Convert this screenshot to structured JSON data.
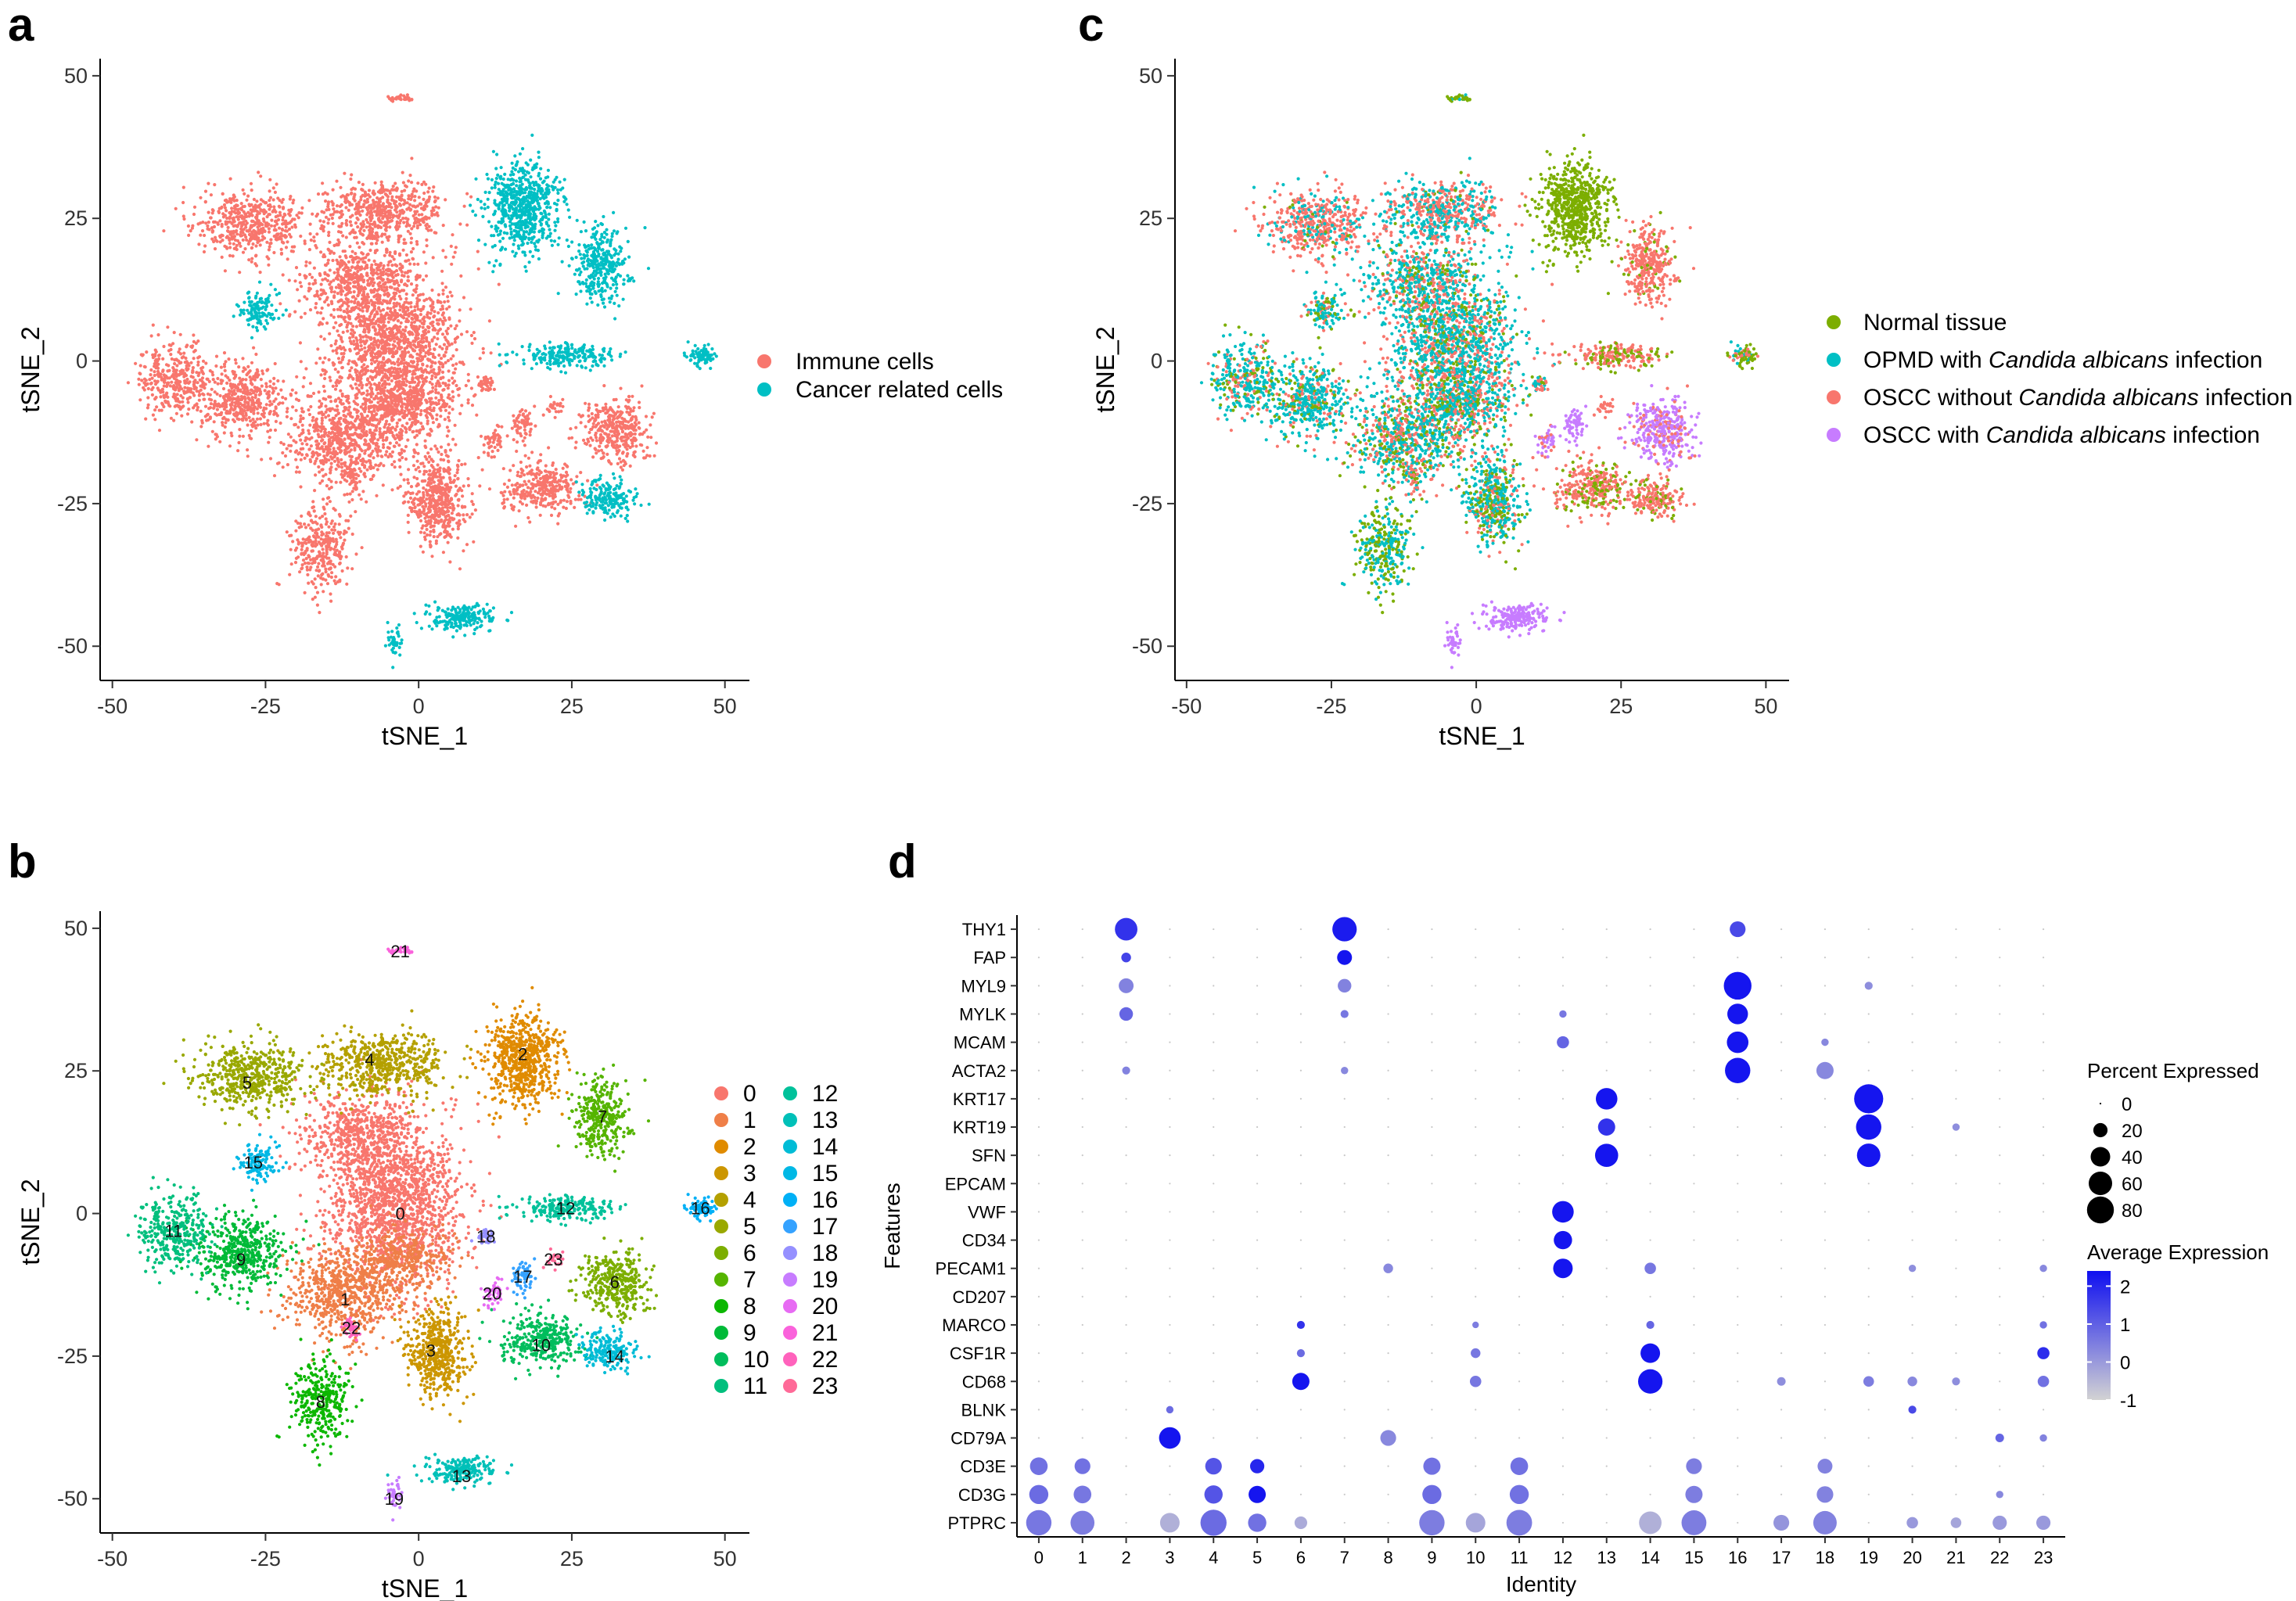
{
  "chart_data": [
    {
      "panel": "a",
      "type": "scatter",
      "xlabel": "tSNE_1",
      "ylabel": "tSNE_2",
      "xlim": [
        -52,
        54
      ],
      "ylim": [
        -56,
        53
      ],
      "xticks": [
        -50,
        -25,
        0,
        25,
        50
      ],
      "yticks": [
        -50,
        -25,
        0,
        25,
        50
      ],
      "grid": false,
      "legend": [
        "Immune cells",
        "Cancer related cells"
      ],
      "colors": [
        "#F8766D",
        "#00BFC4"
      ],
      "legend_position": "right"
    },
    {
      "panel": "b",
      "type": "scatter",
      "xlabel": "tSNE_1",
      "ylabel": "tSNE_2",
      "xlim": [
        -52,
        54
      ],
      "ylim": [
        -56,
        53
      ],
      "xticks": [
        -50,
        -25,
        0,
        25,
        50
      ],
      "yticks": [
        -50,
        -25,
        0,
        25,
        50
      ],
      "grid": false,
      "legend_position": "right",
      "clusters": [
        {
          "label": "0",
          "color": "#F8766D",
          "x": -3,
          "y": 0
        },
        {
          "label": "1",
          "color": "#EF7F48",
          "x": -12,
          "y": -15
        },
        {
          "label": "2",
          "color": "#E08B00",
          "x": 17,
          "y": 28
        },
        {
          "label": "3",
          "color": "#CC9600",
          "x": 2,
          "y": -24
        },
        {
          "label": "4",
          "color": "#B4A000",
          "x": -8,
          "y": 27
        },
        {
          "label": "5",
          "color": "#99A800",
          "x": -28,
          "y": 23
        },
        {
          "label": "6",
          "color": "#7CAE00",
          "x": 32,
          "y": -12
        },
        {
          "label": "7",
          "color": "#55B400",
          "x": 30,
          "y": 17
        },
        {
          "label": "8",
          "color": "#0CB702",
          "x": -16,
          "y": -33
        },
        {
          "label": "9",
          "color": "#00BA38",
          "x": -29,
          "y": -8
        },
        {
          "label": "10",
          "color": "#00BD5C",
          "x": 20,
          "y": -23
        },
        {
          "label": "11",
          "color": "#00BF7D",
          "x": -40,
          "y": -3
        },
        {
          "label": "12",
          "color": "#00C19A",
          "x": 24,
          "y": 1
        },
        {
          "label": "13",
          "color": "#00C0B8",
          "x": 7,
          "y": -46
        },
        {
          "label": "14",
          "color": "#00BCD6",
          "x": 32,
          "y": -25
        },
        {
          "label": "15",
          "color": "#00B8E5",
          "x": -27,
          "y": 9
        },
        {
          "label": "16",
          "color": "#00B0F6",
          "x": 46,
          "y": 1
        },
        {
          "label": "17",
          "color": "#35A2FF",
          "x": 17,
          "y": -11
        },
        {
          "label": "18",
          "color": "#9590FF",
          "x": 11,
          "y": -4
        },
        {
          "label": "19",
          "color": "#C77CFF",
          "x": -4,
          "y": -50
        },
        {
          "label": "20",
          "color": "#E76BF3",
          "x": 12,
          "y": -14
        },
        {
          "label": "21",
          "color": "#FA62DB",
          "x": -3,
          "y": 46
        },
        {
          "label": "22",
          "color": "#FF62BC",
          "x": -11,
          "y": -20
        },
        {
          "label": "23",
          "color": "#FF6A98",
          "x": 22,
          "y": -8
        }
      ]
    },
    {
      "panel": "c",
      "type": "scatter",
      "xlabel": "tSNE_1",
      "ylabel": "tSNE_2",
      "xlim": [
        -52,
        54
      ],
      "ylim": [
        -56,
        53
      ],
      "xticks": [
        -50,
        -25,
        0,
        25,
        50
      ],
      "yticks": [
        -50,
        -25,
        0,
        25,
        50
      ],
      "grid": false,
      "legend_position": "right",
      "legend": [
        {
          "pre": "Normal tissue",
          "it": "",
          "post": "",
          "color": "#7CAE00"
        },
        {
          "pre": "OPMD with ",
          "it": "Candida albicans",
          "post": " infection",
          "color": "#00BFC4"
        },
        {
          "pre": "OSCC without ",
          "it": "Candida albicans",
          "post": " infection",
          "color": "#F8766D"
        },
        {
          "pre": "OSCC with ",
          "it": "Candida albicans",
          "post": " infection",
          "color": "#C77CFF"
        }
      ]
    },
    {
      "panel": "d",
      "type": "scatter",
      "subtype": "dotplot",
      "xlabel": "Identity",
      "ylabel": "Features",
      "identities": [
        "0",
        "1",
        "2",
        "3",
        "4",
        "5",
        "6",
        "7",
        "8",
        "9",
        "10",
        "11",
        "12",
        "13",
        "14",
        "15",
        "16",
        "17",
        "18",
        "19",
        "20",
        "21",
        "22",
        "23"
      ],
      "features": [
        "THY1",
        "FAP",
        "MYL9",
        "MYLK",
        "MCAM",
        "ACTA2",
        "KRT17",
        "KRT19",
        "SFN",
        "EPCAM",
        "VWF",
        "CD34",
        "PECAM1",
        "CD207",
        "MARCO",
        "CSF1R",
        "CD68",
        "BLNK",
        "CD79A",
        "CD3E",
        "CD3G",
        "PTPRC"
      ],
      "size_legend_title": "Percent Expressed",
      "size_legend": [
        0,
        20,
        40,
        60,
        80
      ],
      "color_legend_title": "Average Expression",
      "color_legend_ticks": [
        2,
        1,
        0,
        -1
      ],
      "color_range": [
        -1,
        2.4
      ],
      "dots": [
        {
          "f": "THY1",
          "i": 2,
          "pct": 55,
          "avg": 1.8
        },
        {
          "f": "THY1",
          "i": 7,
          "pct": 65,
          "avg": 2.2
        },
        {
          "f": "THY1",
          "i": 16,
          "pct": 25,
          "avg": 1.4
        },
        {
          "f": "FAP",
          "i": 2,
          "pct": 8,
          "avg": 1.5
        },
        {
          "f": "FAP",
          "i": 7,
          "pct": 22,
          "avg": 2.3
        },
        {
          "f": "MYL9",
          "i": 2,
          "pct": 22,
          "avg": 0.4
        },
        {
          "f": "MYL9",
          "i": 7,
          "pct": 18,
          "avg": 0.4
        },
        {
          "f": "MYL9",
          "i": 16,
          "pct": 85,
          "avg": 2.3
        },
        {
          "f": "MYL9",
          "i": 19,
          "pct": 5,
          "avg": 0.2
        },
        {
          "f": "MYLK",
          "i": 2,
          "pct": 18,
          "avg": 0.9
        },
        {
          "f": "MYLK",
          "i": 7,
          "pct": 5,
          "avg": 0.6
        },
        {
          "f": "MYLK",
          "i": 12,
          "pct": 4,
          "avg": 0.6
        },
        {
          "f": "MYLK",
          "i": 16,
          "pct": 45,
          "avg": 2.3
        },
        {
          "f": "MCAM",
          "i": 12,
          "pct": 14,
          "avg": 0.9
        },
        {
          "f": "MCAM",
          "i": 16,
          "pct": 50,
          "avg": 2.3
        },
        {
          "f": "MCAM",
          "i": 18,
          "pct": 4,
          "avg": 0.3
        },
        {
          "f": "ACTA2",
          "i": 2,
          "pct": 5,
          "avg": 0.4
        },
        {
          "f": "ACTA2",
          "i": 7,
          "pct": 4,
          "avg": 0.3
        },
        {
          "f": "ACTA2",
          "i": 16,
          "pct": 70,
          "avg": 2.3
        },
        {
          "f": "ACTA2",
          "i": 18,
          "pct": 30,
          "avg": 0.3
        },
        {
          "f": "KRT17",
          "i": 13,
          "pct": 50,
          "avg": 2.3
        },
        {
          "f": "KRT17",
          "i": 19,
          "pct": 95,
          "avg": 2.3
        },
        {
          "f": "KRT19",
          "i": 13,
          "pct": 30,
          "avg": 1.8
        },
        {
          "f": "KRT19",
          "i": 19,
          "pct": 70,
          "avg": 2.3
        },
        {
          "f": "KRT19",
          "i": 21,
          "pct": 4,
          "avg": 0.2
        },
        {
          "f": "SFN",
          "i": 13,
          "pct": 58,
          "avg": 2.3
        },
        {
          "f": "SFN",
          "i": 19,
          "pct": 60,
          "avg": 2.3
        },
        {
          "f": "VWF",
          "i": 12,
          "pct": 50,
          "avg": 2.3
        },
        {
          "f": "CD34",
          "i": 12,
          "pct": 35,
          "avg": 2.3
        },
        {
          "f": "PECAM1",
          "i": 8,
          "pct": 8,
          "avg": 0.3
        },
        {
          "f": "PECAM1",
          "i": 12,
          "pct": 40,
          "avg": 2.3
        },
        {
          "f": "PECAM1",
          "i": 14,
          "pct": 12,
          "avg": 0.6
        },
        {
          "f": "PECAM1",
          "i": 20,
          "pct": 4,
          "avg": 0.2
        },
        {
          "f": "PECAM1",
          "i": 23,
          "pct": 4,
          "avg": 0.3
        },
        {
          "f": "MARCO",
          "i": 6,
          "pct": 5,
          "avg": 1.8
        },
        {
          "f": "MARCO",
          "i": 10,
          "pct": 3,
          "avg": 0.5
        },
        {
          "f": "MARCO",
          "i": 14,
          "pct": 5,
          "avg": 0.9
        },
        {
          "f": "MARCO",
          "i": 23,
          "pct": 4,
          "avg": 0.7
        },
        {
          "f": "CSF1R",
          "i": 6,
          "pct": 5,
          "avg": 0.8
        },
        {
          "f": "CSF1R",
          "i": 10,
          "pct": 8,
          "avg": 0.6
        },
        {
          "f": "CSF1R",
          "i": 14,
          "pct": 40,
          "avg": 2.3
        },
        {
          "f": "CSF1R",
          "i": 23,
          "pct": 14,
          "avg": 1.9
        },
        {
          "f": "CD68",
          "i": 6,
          "pct": 30,
          "avg": 2.3
        },
        {
          "f": "CD68",
          "i": 10,
          "pct": 12,
          "avg": 0.6
        },
        {
          "f": "CD68",
          "i": 14,
          "pct": 65,
          "avg": 2.3
        },
        {
          "f": "CD68",
          "i": 17,
          "pct": 6,
          "avg": 0.2
        },
        {
          "f": "CD68",
          "i": 19,
          "pct": 10,
          "avg": 0.5
        },
        {
          "f": "CD68",
          "i": 20,
          "pct": 8,
          "avg": 0.3
        },
        {
          "f": "CD68",
          "i": 21,
          "pct": 5,
          "avg": 0.2
        },
        {
          "f": "CD68",
          "i": 23,
          "pct": 12,
          "avg": 0.7
        },
        {
          "f": "BLNK",
          "i": 3,
          "pct": 4,
          "avg": 0.8
        },
        {
          "f": "BLNK",
          "i": 20,
          "pct": 5,
          "avg": 1.4
        },
        {
          "f": "CD79A",
          "i": 3,
          "pct": 50,
          "avg": 2.3
        },
        {
          "f": "CD79A",
          "i": 8,
          "pct": 25,
          "avg": 0.3
        },
        {
          "f": "CD79A",
          "i": 22,
          "pct": 6,
          "avg": 0.9
        },
        {
          "f": "CD79A",
          "i": 23,
          "pct": 4,
          "avg": 0.4
        },
        {
          "f": "CD3E",
          "i": 0,
          "pct": 32,
          "avg": 0.7
        },
        {
          "f": "CD3E",
          "i": 1,
          "pct": 25,
          "avg": 0.7
        },
        {
          "f": "CD3E",
          "i": 4,
          "pct": 28,
          "avg": 1.2
        },
        {
          "f": "CD3E",
          "i": 5,
          "pct": 20,
          "avg": 2.0
        },
        {
          "f": "CD3E",
          "i": 9,
          "pct": 30,
          "avg": 0.7
        },
        {
          "f": "CD3E",
          "i": 11,
          "pct": 32,
          "avg": 0.7
        },
        {
          "f": "CD3E",
          "i": 15,
          "pct": 25,
          "avg": 0.5
        },
        {
          "f": "CD3E",
          "i": 18,
          "pct": 22,
          "avg": 0.4
        },
        {
          "f": "CD3G",
          "i": 0,
          "pct": 38,
          "avg": 0.8
        },
        {
          "f": "CD3G",
          "i": 1,
          "pct": 32,
          "avg": 0.6
        },
        {
          "f": "CD3G",
          "i": 4,
          "pct": 35,
          "avg": 1.2
        },
        {
          "f": "CD3G",
          "i": 5,
          "pct": 30,
          "avg": 2.3
        },
        {
          "f": "CD3G",
          "i": 9,
          "pct": 38,
          "avg": 0.8
        },
        {
          "f": "CD3G",
          "i": 11,
          "pct": 38,
          "avg": 0.7
        },
        {
          "f": "CD3G",
          "i": 15,
          "pct": 30,
          "avg": 0.5
        },
        {
          "f": "CD3G",
          "i": 18,
          "pct": 28,
          "avg": 0.4
        },
        {
          "f": "CD3G",
          "i": 22,
          "pct": 4,
          "avg": 0.3
        },
        {
          "f": "PTPRC",
          "i": 0,
          "pct": 70,
          "avg": 0.6
        },
        {
          "f": "PTPRC",
          "i": 1,
          "pct": 62,
          "avg": 0.5
        },
        {
          "f": "PTPRC",
          "i": 3,
          "pct": 40,
          "avg": -0.4
        },
        {
          "f": "PTPRC",
          "i": 4,
          "pct": 75,
          "avg": 0.8
        },
        {
          "f": "PTPRC",
          "i": 5,
          "pct": 35,
          "avg": 0.7
        },
        {
          "f": "PTPRC",
          "i": 6,
          "pct": 15,
          "avg": -0.3
        },
        {
          "f": "PTPRC",
          "i": 9,
          "pct": 70,
          "avg": 0.5
        },
        {
          "f": "PTPRC",
          "i": 10,
          "pct": 40,
          "avg": -0.2
        },
        {
          "f": "PTPRC",
          "i": 11,
          "pct": 72,
          "avg": 0.5
        },
        {
          "f": "PTPRC",
          "i": 14,
          "pct": 55,
          "avg": -0.4
        },
        {
          "f": "PTPRC",
          "i": 15,
          "pct": 68,
          "avg": 0.5
        },
        {
          "f": "PTPRC",
          "i": 17,
          "pct": 25,
          "avg": 0.1
        },
        {
          "f": "PTPRC",
          "i": 18,
          "pct": 60,
          "avg": 0.4
        },
        {
          "f": "PTPRC",
          "i": 20,
          "pct": 12,
          "avg": 0.0
        },
        {
          "f": "PTPRC",
          "i": 21,
          "pct": 10,
          "avg": -0.2
        },
        {
          "f": "PTPRC",
          "i": 22,
          "pct": 20,
          "avg": 0.0
        },
        {
          "f": "PTPRC",
          "i": 23,
          "pct": 20,
          "avg": 0.0
        }
      ]
    }
  ],
  "panel_letters": {
    "a": "a",
    "b": "b",
    "c": "c",
    "d": "d"
  }
}
